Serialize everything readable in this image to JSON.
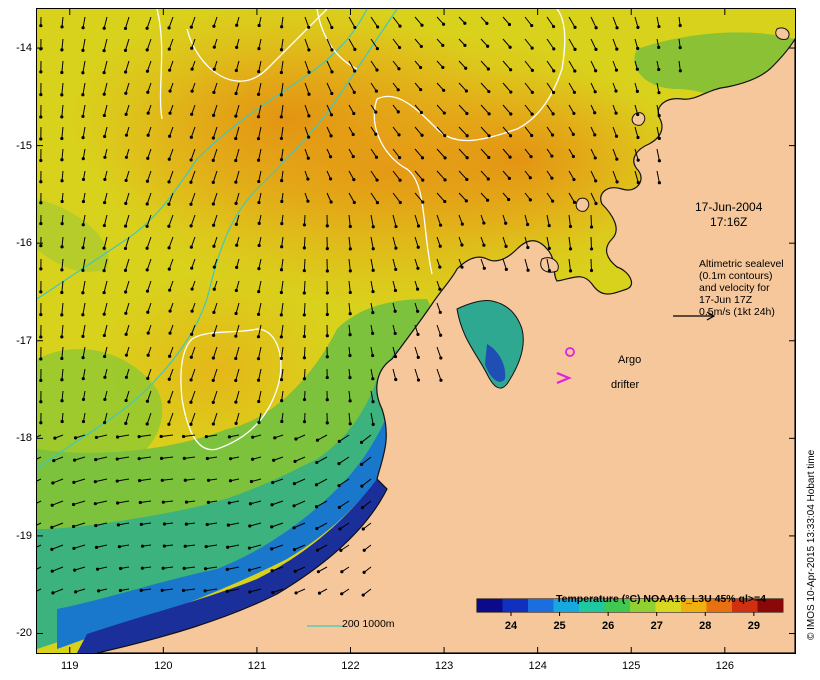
{
  "map": {
    "x_ticks": [
      "119",
      "120",
      "121",
      "122",
      "123",
      "124",
      "125",
      "126"
    ],
    "y_ticks": [
      "-14",
      "-15",
      "-16",
      "-17",
      "-18",
      "-19",
      "-20"
    ],
    "lon_range": [
      118.65,
      126.75
    ],
    "lat_range": [
      -13.6,
      -20.2
    ]
  },
  "annotations": {
    "date_line1": "17-Jun-2004",
    "date_line2": "17:16Z",
    "velocity_line1": "Altimetric sealevel",
    "velocity_line2": "(0.1m contours)",
    "velocity_line3": "and velocity for",
    "velocity_line4": "17-Jun 17Z",
    "velocity_line5": "0.5m/s (1kt 24h)",
    "argo": "Argo",
    "drifter": "drifter",
    "depth_contours": "200  1000m"
  },
  "colorbar": {
    "title": "Temperature (°C) NOAA16_L3U 45% ql>=4",
    "ticks": [
      "24",
      "25",
      "26",
      "27",
      "28",
      "29"
    ],
    "range": [
      23.3,
      29.6
    ]
  },
  "credit": "© IMOS 10-Apr-2015 13:33:04 Hobart time",
  "colors": {
    "land": "#f6c79a",
    "argo": "#e020e0",
    "drifter": "#e020e0",
    "bathymetry_contour": "#40c8c0",
    "sealevel_contour": "#ffffff"
  }
}
